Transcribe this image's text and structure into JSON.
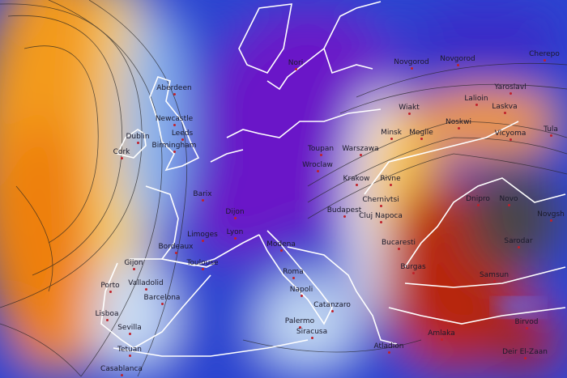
{
  "map": {
    "type": "weather temperature anomaly map with isobars",
    "colors": {
      "warm_orange": "#f39a1a",
      "hot_red": "#b8280e",
      "dark_grey": "#4a4446",
      "cold_blue": "#1e44d8",
      "very_cold_purple": "#6a18c8",
      "neutral_white": "#e8eef6",
      "coastline": "#ffffff",
      "isobar": "#222222"
    },
    "cities": [
      "Aberdeen",
      "Newcastle",
      "Leeds",
      "Dublin",
      "Cork",
      "Birmingham",
      "Nori",
      "Novgorod",
      "Novgorod",
      "Cherepo",
      "Yaroslavl",
      "Lalioin",
      "Laskva",
      "Noskwi",
      "Wiakt",
      "Minsk",
      "Mogile",
      "Vlcyoma",
      "Tula",
      "Warszawa",
      "Toupan",
      "Wroclaw",
      "Krakow",
      "Rivne",
      "Dnipro",
      "Novo",
      "Novgsh",
      "Chernivtsi",
      "Budapest",
      "Cluj Napoca",
      "Sarodar",
      "Bucaresti",
      "Samsun",
      "Burgas",
      "Amlaka",
      "Birvod",
      "Deir El-Zaan",
      "Roma",
      "Napoli",
      "Catanzaro",
      "Palermo",
      "Siracusa",
      "Atladion",
      "Barix",
      "Dijon",
      "Lyon",
      "Limoges",
      "Bordeaux",
      "Toulouse",
      "Gijon",
      "Porto",
      "Valladolid",
      "Barcelona",
      "Lisboa",
      "Sevilla",
      "Tetuan",
      "Casablanca",
      "Modena"
    ]
  }
}
